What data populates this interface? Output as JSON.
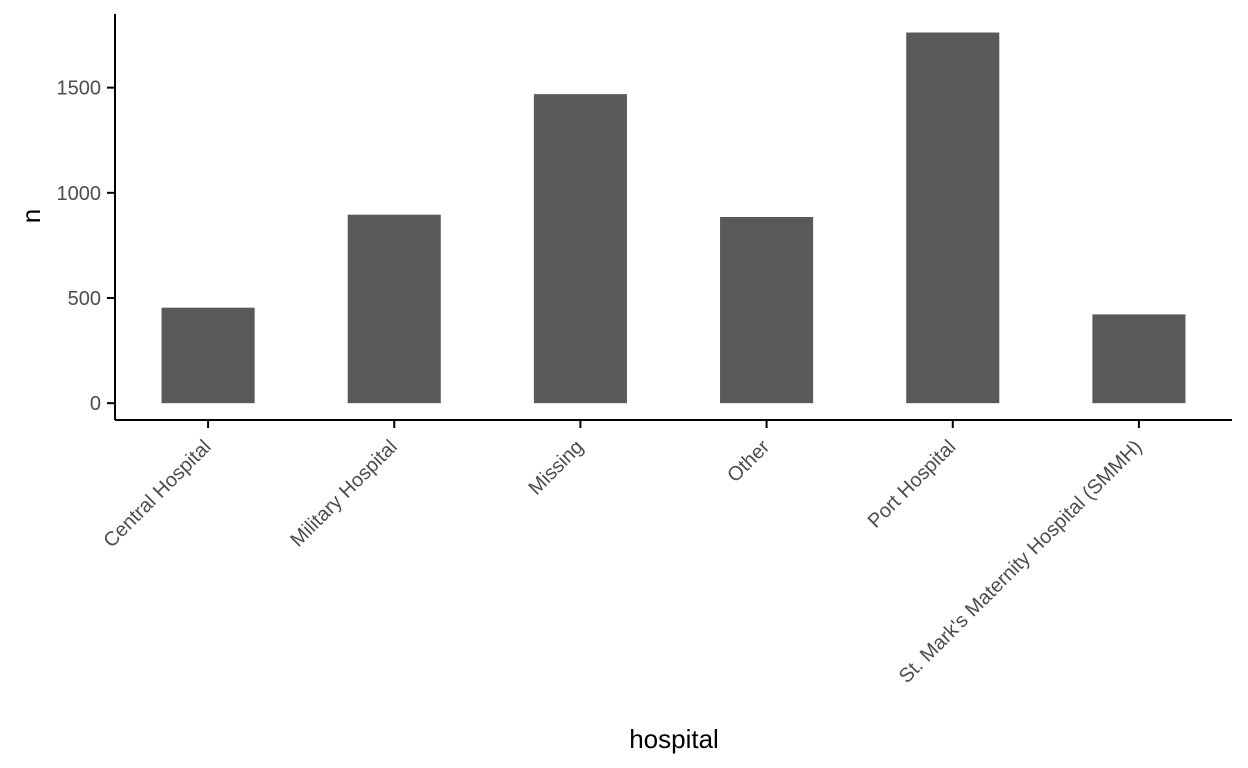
{
  "chart_data": {
    "type": "bar",
    "title": "",
    "xlabel": "hospital",
    "ylabel": "n",
    "categories": [
      "Central Hospital",
      "Military Hospital",
      "Missing",
      "Other",
      "Port Hospital",
      "St. Mark's Maternity Hospital (SMMH)"
    ],
    "values": [
      454,
      896,
      1469,
      885,
      1762,
      422
    ],
    "ylim": [
      -80,
      1850
    ],
    "yticks": [
      0,
      500,
      1000,
      1500
    ],
    "ytick_labels": [
      "0",
      "500",
      "1000",
      "1500"
    ],
    "grid": false,
    "bar_color": "#595959",
    "axis_color": "#000000",
    "tick_label_color": "#4d4d4d"
  }
}
